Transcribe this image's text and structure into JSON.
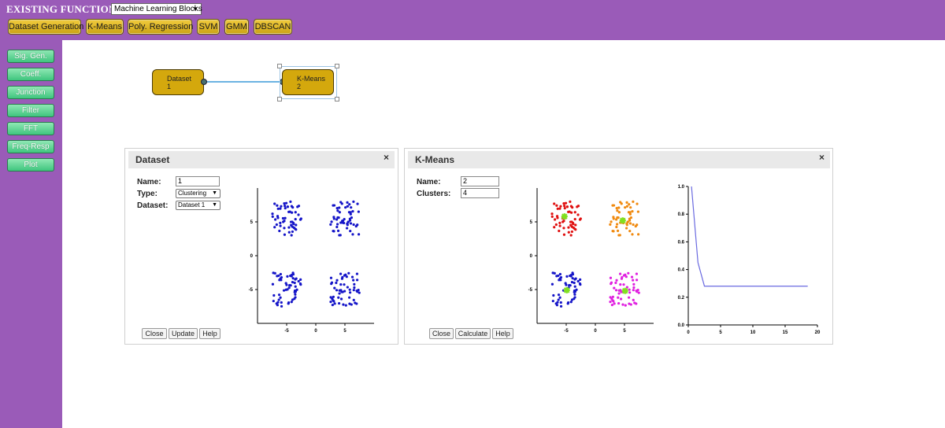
{
  "app": {
    "title": "EXISTING FUNCTIONS",
    "category": "Machine Learning Blocks"
  },
  "toolbar": [
    "Dataset Generation",
    "K-Means",
    "Poly. Regression",
    "SVM",
    "GMM",
    "DBSCAN"
  ],
  "sidebar": [
    "Sig. Gen.",
    "Coeff.",
    "Junction",
    "Filter",
    "FFT",
    "Freq-Resp",
    "Plot"
  ],
  "canvas": {
    "blocks": [
      {
        "name": "Dataset",
        "id": "1"
      },
      {
        "name": "K-Means",
        "id": "2"
      }
    ]
  },
  "dataset_panel": {
    "title": "Dataset",
    "close_icon": "×",
    "name_label": "Name:",
    "name_value": "1",
    "type_label": "Type:",
    "type_value": "Clustering",
    "dataset_label": "Dataset:",
    "dataset_value": "Dataset 1",
    "buttons": [
      "Close",
      "Update",
      "Help"
    ]
  },
  "kmeans_panel": {
    "title": "K-Means",
    "close_icon": "×",
    "name_label": "Name:",
    "name_value": "2",
    "clusters_label": "Clusters:",
    "clusters_value": "4",
    "buttons": [
      "Close",
      "Calculate",
      "Help"
    ]
  },
  "colors": {
    "purple": "#9a5bb8",
    "gold": "#d4a80d",
    "green": "#4ccb86",
    "blue": "#1515c8",
    "red": "#e01010",
    "orange": "#f08a10",
    "magenta": "#e020e0",
    "centroid": "#80e020"
  },
  "chart_data": [
    {
      "type": "scatter",
      "title": "",
      "xlim": [
        -10,
        10
      ],
      "ylim": [
        -10,
        10
      ],
      "x_ticks": [
        "-5",
        "0",
        "5"
      ],
      "y_ticks": [
        "5",
        "0",
        "-5"
      ],
      "series": [
        {
          "cluster_centers": [
            [
              -5,
              5.5
            ],
            [
              5,
              5.5
            ],
            [
              -5,
              -5
            ],
            [
              5,
              -5
            ]
          ],
          "spread": 2.5,
          "points_per_cluster": 55,
          "color": "#1515c8"
        }
      ]
    },
    {
      "type": "scatter",
      "title": "",
      "xlim": [
        -10,
        10
      ],
      "ylim": [
        -10,
        10
      ],
      "x_ticks": [
        "-5",
        "0",
        "5"
      ],
      "y_ticks": [
        "5",
        "0",
        "-5"
      ],
      "series": [
        {
          "cluster_centers": [
            [
              -5,
              5.5
            ]
          ],
          "spread": 2.5,
          "points_per_cluster": 55,
          "color": "#e01010"
        },
        {
          "cluster_centers": [
            [
              5,
              5.5
            ]
          ],
          "spread": 2.5,
          "points_per_cluster": 55,
          "color": "#f08a10"
        },
        {
          "cluster_centers": [
            [
              -5,
              -5
            ]
          ],
          "spread": 2.5,
          "points_per_cluster": 55,
          "color": "#1515c8"
        },
        {
          "cluster_centers": [
            [
              5,
              -5
            ]
          ],
          "spread": 2.5,
          "points_per_cluster": 55,
          "color": "#e020e0"
        }
      ],
      "centroids": [
        [
          -5.3,
          5.8
        ],
        [
          4.7,
          5.2
        ],
        [
          -4.9,
          -5.1
        ],
        [
          5.1,
          -5.2
        ]
      ]
    },
    {
      "type": "line",
      "title": "",
      "xlim": [
        0,
        20
      ],
      "ylim": [
        0,
        1
      ],
      "x_ticks": [
        "0",
        "5",
        "10",
        "15",
        "20"
      ],
      "y_ticks": [
        "1.0",
        "0.8",
        "0.6",
        "0.4",
        "0.2",
        "0.0"
      ],
      "x": [
        0.5,
        1.5,
        2.5,
        3,
        5,
        10,
        15,
        18.5
      ],
      "y": [
        1.0,
        0.45,
        0.28,
        0.28,
        0.28,
        0.28,
        0.28,
        0.28
      ],
      "color": "#6a6ae0"
    }
  ]
}
